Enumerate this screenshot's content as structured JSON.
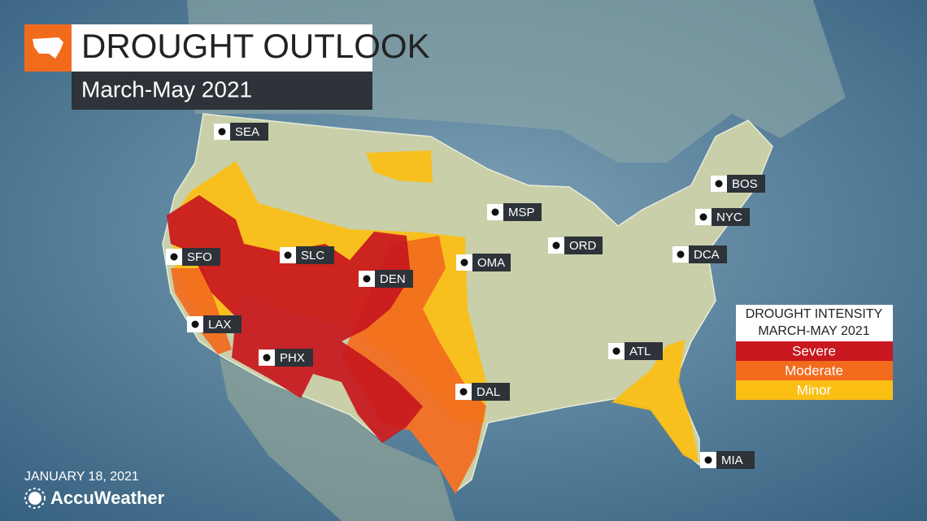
{
  "header": {
    "title": "DROUGHT OUTLOOK",
    "subtitle": "March-May 2021"
  },
  "cities": [
    "SEA",
    "SFO",
    "LAX",
    "PHX",
    "SLC",
    "DEN",
    "OMA",
    "MSP",
    "ORD",
    "DAL",
    "ATL",
    "MIA",
    "DCA",
    "NYC",
    "BOS"
  ],
  "legend": {
    "title": [
      "DROUGHT INTENSITY",
      "MARCH-MAY 2021"
    ],
    "items": [
      {
        "label": "Severe",
        "color": "#c8171e"
      },
      {
        "label": "Moderate",
        "color": "#f26b1d"
      },
      {
        "label": "Minor",
        "color": "#fbbf14"
      }
    ]
  },
  "footer": {
    "date": "JANUARY 18, 2021",
    "brand": "AccuWeather"
  }
}
